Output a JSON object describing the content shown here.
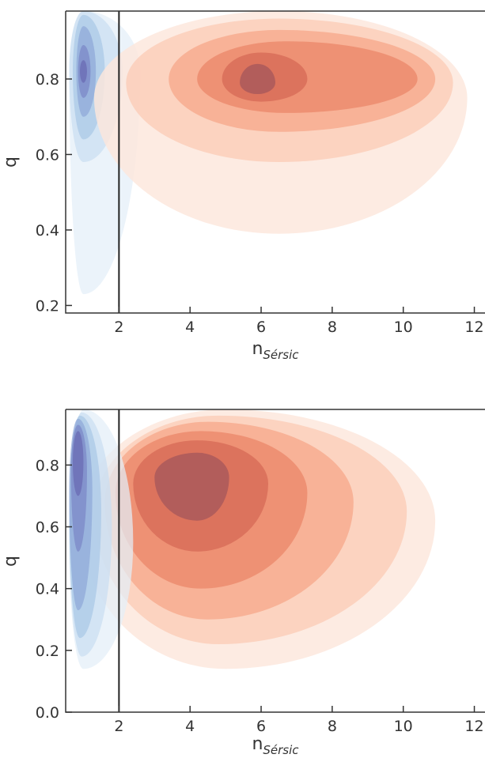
{
  "chart_data": [
    {
      "type": "contour",
      "subtype": "kde-density",
      "title": "",
      "xlabel_base": "n",
      "xlabel_sub": "Sérsic",
      "ylabel": "q",
      "xlim": [
        0.5,
        12.3
      ],
      "ylim": [
        0.18,
        0.98
      ],
      "xticks": [
        2,
        4,
        6,
        8,
        10,
        12
      ],
      "xtick_labels": [
        "2",
        "4",
        "6",
        "8",
        "10",
        "12"
      ],
      "yticks": [
        0.2,
        0.4,
        0.6,
        0.8
      ],
      "ytick_labels": [
        "0.2",
        "0.4",
        "0.6",
        "0.8"
      ],
      "vline_x": 2,
      "legend": "none",
      "grid": false,
      "series": [
        {
          "colormap": "Blues",
          "color": "#6f7fc8",
          "levels": [
            {
              "density": 0.1,
              "center": [
                1.0,
                0.82
              ],
              "extent_x": [
                0.6,
                2.6
              ],
              "extent_y": [
                0.23,
                0.98
              ]
            },
            {
              "density": 0.25,
              "center": [
                1.0,
                0.82
              ],
              "extent_x": [
                0.6,
                2.1
              ],
              "extent_y": [
                0.58,
                0.98
              ]
            },
            {
              "density": 0.4,
              "center": [
                1.0,
                0.82
              ],
              "extent_x": [
                0.7,
                1.6
              ],
              "extent_y": [
                0.64,
                0.97
              ]
            },
            {
              "density": 0.55,
              "center": [
                1.0,
                0.82
              ],
              "extent_x": [
                0.8,
                1.35
              ],
              "extent_y": [
                0.7,
                0.94
              ]
            },
            {
              "density": 0.75,
              "center": [
                1.0,
                0.82
              ],
              "extent_x": [
                0.85,
                1.2
              ],
              "extent_y": [
                0.75,
                0.89
              ]
            },
            {
              "density": 0.95,
              "center": [
                1.0,
                0.82
              ],
              "extent_x": [
                0.9,
                1.1
              ],
              "extent_y": [
                0.79,
                0.85
              ]
            }
          ]
        },
        {
          "colormap": "Reds",
          "color": "#e8806a",
          "levels": [
            {
              "density": 0.1,
              "center": [
                6.5,
                0.75
              ],
              "extent_x": [
                1.3,
                11.8
              ],
              "extent_y": [
                0.39,
                0.98
              ]
            },
            {
              "density": 0.25,
              "center": [
                6.5,
                0.79
              ],
              "extent_x": [
                2.2,
                11.4
              ],
              "extent_y": [
                0.58,
                0.96
              ]
            },
            {
              "density": 0.45,
              "center": [
                6.5,
                0.8
              ],
              "extent_x": [
                3.4,
                10.9
              ],
              "extent_y": [
                0.66,
                0.93
              ]
            },
            {
              "density": 0.65,
              "center": [
                6.7,
                0.8
              ],
              "extent_x": [
                4.2,
                10.4
              ],
              "extent_y": [
                0.71,
                0.9
              ]
            },
            {
              "density": 0.8,
              "center": [
                6.0,
                0.8
              ],
              "extent_x": [
                4.9,
                7.3
              ],
              "extent_y": [
                0.74,
                0.87
              ]
            },
            {
              "density": 0.95,
              "center": [
                5.9,
                0.79
              ],
              "extent_x": [
                5.4,
                6.4
              ],
              "extent_y": [
                0.76,
                0.84
              ]
            }
          ]
        }
      ]
    },
    {
      "type": "contour",
      "subtype": "kde-density",
      "title": "",
      "xlabel_base": "n",
      "xlabel_sub": "Sérsic",
      "ylabel": "q",
      "xlim": [
        0.5,
        12.3
      ],
      "ylim": [
        0.0,
        0.98
      ],
      "xticks": [
        2,
        4,
        6,
        8,
        10,
        12
      ],
      "xtick_labels": [
        "2",
        "4",
        "6",
        "8",
        "10",
        "12"
      ],
      "yticks": [
        0.0,
        0.2,
        0.4,
        0.6,
        0.8
      ],
      "ytick_labels": [
        "0.0",
        "0.2",
        "0.4",
        "0.6",
        "0.8"
      ],
      "vline_x": 2,
      "legend": "none",
      "grid": false,
      "series": [
        {
          "colormap": "Blues",
          "color": "#6f7fc8",
          "levels": [
            {
              "density": 0.1,
              "center": [
                1.0,
                0.55
              ],
              "extent_x": [
                0.6,
                2.4
              ],
              "extent_y": [
                0.14,
                0.98
              ]
            },
            {
              "density": 0.25,
              "center": [
                0.95,
                0.6
              ],
              "extent_x": [
                0.6,
                1.8
              ],
              "extent_y": [
                0.18,
                0.97
              ]
            },
            {
              "density": 0.4,
              "center": [
                0.9,
                0.65
              ],
              "extent_x": [
                0.6,
                1.5
              ],
              "extent_y": [
                0.24,
                0.96
              ]
            },
            {
              "density": 0.55,
              "center": [
                0.85,
                0.72
              ],
              "extent_x": [
                0.6,
                1.25
              ],
              "extent_y": [
                0.33,
                0.95
              ]
            },
            {
              "density": 0.75,
              "center": [
                0.85,
                0.78
              ],
              "extent_x": [
                0.65,
                1.1
              ],
              "extent_y": [
                0.52,
                0.93
              ]
            },
            {
              "density": 0.95,
              "center": [
                0.85,
                0.81
              ],
              "extent_x": [
                0.7,
                1.0
              ],
              "extent_y": [
                0.7,
                0.91
              ]
            }
          ]
        },
        {
          "colormap": "Reds",
          "color": "#e8806a",
          "levels": [
            {
              "density": 0.1,
              "center": [
                5.0,
                0.62
              ],
              "extent_x": [
                0.9,
                10.9
              ],
              "extent_y": [
                0.14,
                0.98
              ]
            },
            {
              "density": 0.25,
              "center": [
                4.8,
                0.65
              ],
              "extent_x": [
                1.3,
                10.1
              ],
              "extent_y": [
                0.22,
                0.96
              ]
            },
            {
              "density": 0.45,
              "center": [
                4.5,
                0.68
              ],
              "extent_x": [
                1.6,
                8.6
              ],
              "extent_y": [
                0.3,
                0.94
              ]
            },
            {
              "density": 0.65,
              "center": [
                4.3,
                0.71
              ],
              "extent_x": [
                1.9,
                7.3
              ],
              "extent_y": [
                0.4,
                0.91
              ]
            },
            {
              "density": 0.8,
              "center": [
                4.2,
                0.74
              ],
              "extent_x": [
                2.4,
                6.2
              ],
              "extent_y": [
                0.52,
                0.88
              ]
            },
            {
              "density": 0.95,
              "center": [
                4.2,
                0.76
              ],
              "extent_x": [
                3.0,
                5.1
              ],
              "extent_y": [
                0.62,
                0.84
              ]
            }
          ]
        }
      ]
    }
  ],
  "colors": {
    "blue_light": "#d8e7f5",
    "blue_dark": "#6f6fb8",
    "red_light": "#fde3d8",
    "red_dark": "#a8585a",
    "axis": "#333333",
    "vline": "#222222"
  }
}
